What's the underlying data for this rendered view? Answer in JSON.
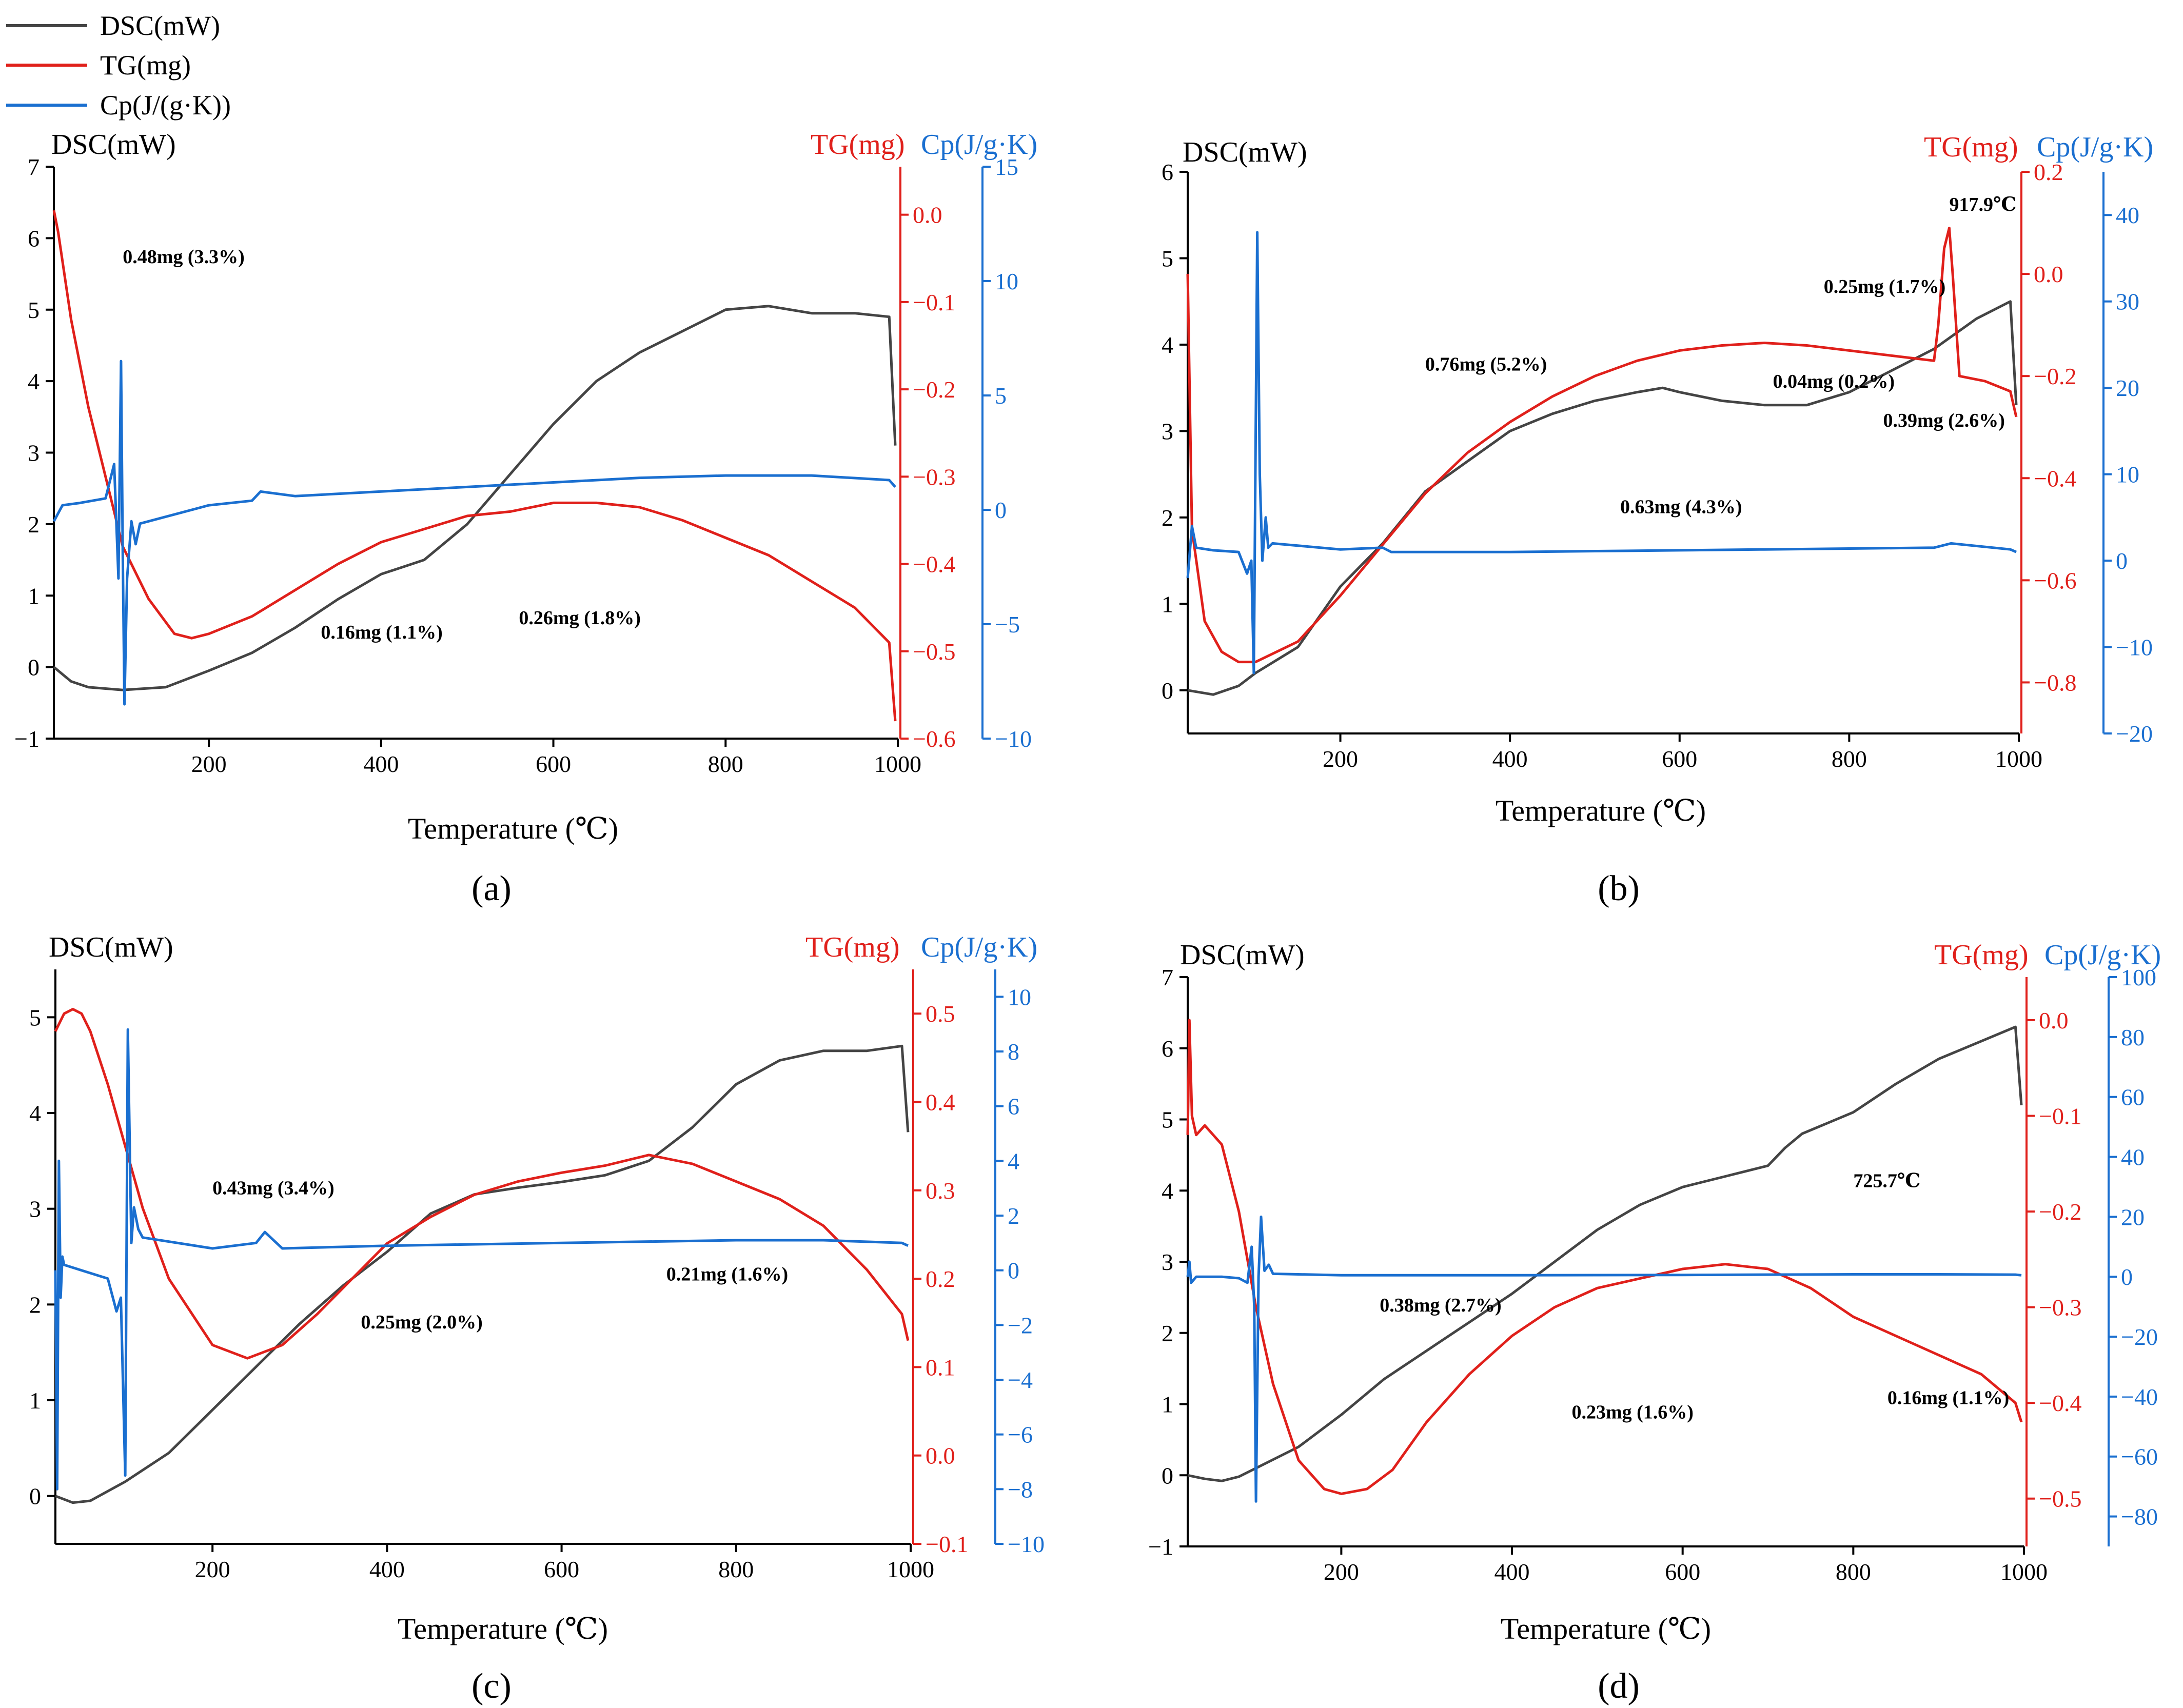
{
  "legend": [
    {
      "label": "DSC(mW)",
      "color": "#444444"
    },
    {
      "label": "TG(mg)",
      "color": "#e0201b"
    },
    {
      "label": "Cp(J/(g·K))",
      "color": "#1a6fd0"
    }
  ],
  "colors": {
    "dsc": "#444444",
    "tg": "#e0201b",
    "cp": "#1a6fd0"
  },
  "chart_data": [
    {
      "type": "line",
      "panel_label": "(a)",
      "xlabel": "Temperature (℃)",
      "ylabel": "DSC(mW)",
      "y2label": "TG(mg)",
      "y3label": "Cp(J/g·K)",
      "xlim": [
        20,
        1000
      ],
      "xticks": [
        200,
        400,
        600,
        800,
        1000
      ],
      "ylim": [
        -1,
        7
      ],
      "yticks": [
        -1,
        0,
        1,
        2,
        3,
        4,
        5,
        6,
        7
      ],
      "y2lim": [
        -0.6,
        0.055
      ],
      "y2ticks": [
        0.0,
        -0.1,
        -0.2,
        -0.3,
        -0.4,
        -0.5,
        -0.6
      ],
      "y3lim": [
        -10,
        15
      ],
      "y3ticks": [
        15,
        10,
        5,
        0,
        -5,
        -10
      ],
      "series": [
        {
          "name": "DSC(mW)",
          "axis": "left",
          "x": [
            20,
            40,
            60,
            100,
            150,
            200,
            250,
            300,
            350,
            400,
            450,
            500,
            550,
            600,
            650,
            700,
            750,
            800,
            850,
            900,
            950,
            990,
            997
          ],
          "y": [
            0,
            -0.2,
            -0.28,
            -0.32,
            -0.28,
            -0.05,
            0.2,
            0.55,
            0.95,
            1.3,
            1.5,
            2.0,
            2.7,
            3.4,
            4.0,
            4.4,
            4.7,
            5.0,
            5.05,
            4.95,
            4.95,
            4.9,
            3.1
          ]
        },
        {
          "name": "TG(mg)",
          "axis": "right",
          "x": [
            20,
            25,
            40,
            60,
            80,
            100,
            130,
            160,
            180,
            200,
            250,
            300,
            350,
            400,
            450,
            500,
            550,
            600,
            650,
            700,
            750,
            800,
            850,
            900,
            950,
            990,
            997
          ],
          "y": [
            0.005,
            -0.02,
            -0.12,
            -0.22,
            -0.3,
            -0.38,
            -0.44,
            -0.48,
            -0.485,
            -0.48,
            -0.46,
            -0.43,
            -0.4,
            -0.375,
            -0.36,
            -0.345,
            -0.34,
            -0.33,
            -0.33,
            -0.335,
            -0.35,
            -0.37,
            -0.39,
            -0.42,
            -0.45,
            -0.49,
            -0.58
          ]
        },
        {
          "name": "Cp(J/(g·K))",
          "axis": "right2",
          "x": [
            20,
            30,
            50,
            80,
            90,
            95,
            98,
            100,
            102,
            105,
            110,
            115,
            120,
            200,
            250,
            260,
            300,
            400,
            500,
            600,
            700,
            800,
            900,
            990,
            997
          ],
          "y": [
            -0.5,
            0.2,
            0.3,
            0.5,
            2.0,
            -3.0,
            6.5,
            -2.0,
            -8.5,
            -3.0,
            -0.5,
            -1.5,
            -0.6,
            0.2,
            0.4,
            0.8,
            0.6,
            0.8,
            1.0,
            1.2,
            1.4,
            1.5,
            1.5,
            1.3,
            1.0
          ]
        }
      ],
      "annotations": [
        {
          "text": "0.48mg (3.3%)",
          "x": 100,
          "y": 5.65
        },
        {
          "text": "0.16mg (1.1%)",
          "x": 330,
          "y": 0.4
        },
        {
          "text": "0.26mg (1.8%)",
          "x": 560,
          "y": 0.6
        }
      ]
    },
    {
      "type": "line",
      "panel_label": "(b)",
      "xlabel": "Temperature (℃)",
      "ylabel": "DSC(mW)",
      "y2label": "TG(mg)",
      "y3label": "Cp(J/g·K)",
      "xlim": [
        20,
        1000
      ],
      "xticks": [
        200,
        400,
        600,
        800,
        1000
      ],
      "ylim": [
        -0.5,
        6
      ],
      "yticks": [
        0,
        1,
        2,
        3,
        4,
        5,
        6
      ],
      "y2lim": [
        -0.9,
        0.2
      ],
      "y2ticks": [
        0.2,
        0.0,
        -0.2,
        -0.4,
        -0.6,
        -0.8
      ],
      "y3lim": [
        -20,
        45
      ],
      "y3ticks": [
        40,
        30,
        20,
        10,
        0,
        -10,
        -20
      ],
      "series": [
        {
          "name": "DSC(mW)",
          "axis": "left",
          "x": [
            20,
            50,
            80,
            100,
            150,
            200,
            250,
            300,
            350,
            400,
            450,
            500,
            550,
            580,
            600,
            650,
            700,
            750,
            800,
            850,
            900,
            950,
            990,
            997
          ],
          "y": [
            0,
            -0.05,
            0.05,
            0.2,
            0.5,
            1.2,
            1.7,
            2.3,
            2.65,
            3.0,
            3.2,
            3.35,
            3.45,
            3.5,
            3.45,
            3.35,
            3.3,
            3.3,
            3.45,
            3.7,
            3.95,
            4.3,
            4.5,
            3.3
          ]
        },
        {
          "name": "TG(mg)",
          "axis": "right",
          "x": [
            20,
            25,
            40,
            60,
            80,
            100,
            150,
            200,
            250,
            300,
            350,
            400,
            450,
            500,
            550,
            600,
            650,
            700,
            750,
            800,
            850,
            900,
            905,
            912,
            918,
            922,
            930,
            960,
            990,
            997
          ],
          "y": [
            0.0,
            -0.5,
            -0.68,
            -0.74,
            -0.76,
            -0.76,
            -0.72,
            -0.63,
            -0.53,
            -0.43,
            -0.35,
            -0.29,
            -0.24,
            -0.2,
            -0.17,
            -0.15,
            -0.14,
            -0.135,
            -0.14,
            -0.15,
            -0.16,
            -0.17,
            -0.1,
            0.05,
            0.09,
            0.0,
            -0.2,
            -0.21,
            -0.23,
            -0.28
          ]
        },
        {
          "name": "Cp(J/(g·K))",
          "axis": "right2",
          "x": [
            20,
            25,
            30,
            50,
            80,
            90,
            95,
            98,
            100,
            102,
            105,
            108,
            112,
            115,
            120,
            200,
            250,
            260,
            300,
            400,
            500,
            600,
            700,
            800,
            900,
            920,
            990,
            997
          ],
          "y": [
            -2,
            4,
            1.5,
            1.2,
            1.0,
            -1.5,
            0.0,
            -13,
            12,
            38,
            10,
            0,
            5,
            1.5,
            2.0,
            1.3,
            1.5,
            1.0,
            1.0,
            1.0,
            1.1,
            1.2,
            1.3,
            1.4,
            1.5,
            2.0,
            1.3,
            1.0
          ]
        }
      ],
      "annotations": [
        {
          "text": "917.9℃",
          "x": 918,
          "y": 5.55
        },
        {
          "text": "0.25mg (1.7%)",
          "x": 770,
          "y": 4.6
        },
        {
          "text": "0.76mg (5.2%)",
          "x": 300,
          "y": 3.7
        },
        {
          "text": "0.04mg (0.2%)",
          "x": 710,
          "y": 3.5
        },
        {
          "text": "0.39mg (2.6%)",
          "x": 840,
          "y": 3.05
        },
        {
          "text": "0.63mg (4.3%)",
          "x": 530,
          "y": 2.05
        }
      ]
    },
    {
      "type": "line",
      "panel_label": "(c)",
      "xlabel": "Temperature (℃)",
      "ylabel": "DSC(mW)",
      "y2label": "TG(mg)",
      "y3label": "Cp(J/g·K)",
      "xlim": [
        20,
        1000
      ],
      "xticks": [
        200,
        400,
        600,
        800,
        1000
      ],
      "ylim": [
        -0.5,
        5.5
      ],
      "yticks": [
        0,
        1,
        2,
        3,
        4,
        5
      ],
      "y2lim": [
        -0.1,
        0.55
      ],
      "y2ticks": [
        0.5,
        0.4,
        0.3,
        0.2,
        0.1,
        0.0,
        -0.1
      ],
      "y3lim": [
        -10,
        11
      ],
      "y3ticks": [
        10,
        8,
        6,
        4,
        2,
        0,
        -2,
        -4,
        -6,
        -8,
        -10
      ],
      "series": [
        {
          "name": "DSC(mW)",
          "axis": "left",
          "x": [
            20,
            40,
            60,
            100,
            150,
            200,
            250,
            300,
            350,
            400,
            450,
            500,
            550,
            600,
            650,
            700,
            750,
            800,
            850,
            900,
            950,
            990,
            997
          ],
          "y": [
            0,
            -0.07,
            -0.05,
            0.15,
            0.45,
            0.9,
            1.35,
            1.8,
            2.2,
            2.55,
            2.95,
            3.15,
            3.22,
            3.28,
            3.35,
            3.5,
            3.85,
            4.3,
            4.55,
            4.65,
            4.65,
            4.7,
            3.8
          ]
        },
        {
          "name": "TG(mg)",
          "axis": "right",
          "x": [
            20,
            25,
            30,
            40,
            50,
            60,
            80,
            100,
            120,
            150,
            200,
            240,
            280,
            320,
            360,
            400,
            450,
            500,
            550,
            600,
            650,
            700,
            750,
            800,
            850,
            900,
            950,
            990,
            997
          ],
          "y": [
            0.48,
            0.49,
            0.5,
            0.505,
            0.5,
            0.48,
            0.42,
            0.35,
            0.28,
            0.2,
            0.125,
            0.11,
            0.125,
            0.16,
            0.2,
            0.24,
            0.27,
            0.295,
            0.31,
            0.32,
            0.328,
            0.34,
            0.33,
            0.31,
            0.29,
            0.26,
            0.21,
            0.16,
            0.13
          ]
        },
        {
          "name": "Cp(J/(g·K))",
          "axis": "right2",
          "x": [
            20,
            22,
            24,
            26,
            28,
            30,
            50,
            80,
            90,
            95,
            100,
            103,
            107,
            110,
            115,
            120,
            200,
            250,
            260,
            280,
            400,
            600,
            800,
            900,
            990,
            997
          ],
          "y": [
            0,
            -8,
            4,
            -1,
            0.5,
            0.2,
            0.0,
            -0.3,
            -1.5,
            -1.0,
            -7.5,
            8.8,
            1.0,
            2.3,
            1.5,
            1.2,
            0.8,
            1.0,
            1.4,
            0.8,
            0.9,
            1.0,
            1.1,
            1.1,
            1.0,
            0.9
          ]
        }
      ],
      "annotations": [
        {
          "text": "0.43mg (3.4%)",
          "x": 200,
          "y": 3.15
        },
        {
          "text": "0.25mg (2.0%)",
          "x": 370,
          "y": 1.75
        },
        {
          "text": "0.21mg (1.6%)",
          "x": 720,
          "y": 2.25
        }
      ]
    },
    {
      "type": "line",
      "panel_label": "(d)",
      "xlabel": "Temperature (℃)",
      "ylabel": "DSC(mW)",
      "y2label": "TG(mg)",
      "y3label": "Cp(J/g·K)",
      "xlim": [
        20,
        1000
      ],
      "xticks": [
        200,
        400,
        600,
        800,
        1000
      ],
      "ylim": [
        -1,
        7
      ],
      "yticks": [
        -1,
        0,
        1,
        2,
        3,
        4,
        5,
        6,
        7
      ],
      "y2lim": [
        -0.55,
        0.045
      ],
      "y2ticks": [
        0.0,
        -0.1,
        -0.2,
        -0.3,
        -0.4,
        -0.5
      ],
      "y3lim": [
        -90,
        100
      ],
      "y3ticks": [
        100,
        80,
        60,
        40,
        20,
        0,
        -20,
        -40,
        -60,
        -80
      ],
      "series": [
        {
          "name": "DSC(mW)",
          "axis": "left",
          "x": [
            20,
            40,
            60,
            80,
            100,
            150,
            200,
            250,
            300,
            350,
            400,
            450,
            500,
            550,
            600,
            650,
            700,
            720,
            740,
            800,
            850,
            900,
            950,
            990,
            997
          ],
          "y": [
            0,
            -0.05,
            -0.08,
            -0.02,
            0.1,
            0.4,
            0.85,
            1.35,
            1.75,
            2.15,
            2.55,
            3.0,
            3.45,
            3.8,
            4.05,
            4.2,
            4.35,
            4.6,
            4.8,
            5.1,
            5.5,
            5.85,
            6.1,
            6.3,
            5.2
          ]
        },
        {
          "name": "TG(mg)",
          "axis": "right",
          "x": [
            20,
            22,
            25,
            30,
            40,
            60,
            80,
            100,
            120,
            150,
            180,
            200,
            230,
            260,
            300,
            350,
            400,
            450,
            500,
            550,
            600,
            650,
            700,
            750,
            800,
            850,
            900,
            950,
            990,
            997
          ],
          "y": [
            -0.12,
            0.0,
            -0.1,
            -0.12,
            -0.11,
            -0.13,
            -0.2,
            -0.3,
            -0.38,
            -0.46,
            -0.49,
            -0.495,
            -0.49,
            -0.47,
            -0.42,
            -0.37,
            -0.33,
            -0.3,
            -0.28,
            -0.27,
            -0.26,
            -0.255,
            -0.26,
            -0.28,
            -0.31,
            -0.33,
            -0.35,
            -0.37,
            -0.4,
            -0.42
          ]
        },
        {
          "name": "Cp(J/(g·K))",
          "axis": "right2",
          "x": [
            20,
            22,
            24,
            30,
            60,
            80,
            90,
            95,
            98,
            100,
            103,
            106,
            110,
            115,
            120,
            200,
            400,
            600,
            800,
            900,
            990,
            997
          ],
          "y": [
            0,
            5,
            -2,
            0,
            0,
            -0.5,
            -2.0,
            10,
            -10,
            -75,
            0,
            20,
            2,
            4,
            1,
            0.5,
            0.5,
            0.6,
            0.8,
            0.8,
            0.7,
            0.5
          ]
        }
      ],
      "annotations": [
        {
          "text": "725.7℃",
          "x": 800,
          "y": 4.05
        },
        {
          "text": "0.38mg (2.7%)",
          "x": 245,
          "y": 2.3
        },
        {
          "text": "0.23mg (1.6%)",
          "x": 470,
          "y": 0.8
        },
        {
          "text": "0.16mg (1.1%)",
          "x": 840,
          "y": 1.0
        }
      ]
    }
  ]
}
